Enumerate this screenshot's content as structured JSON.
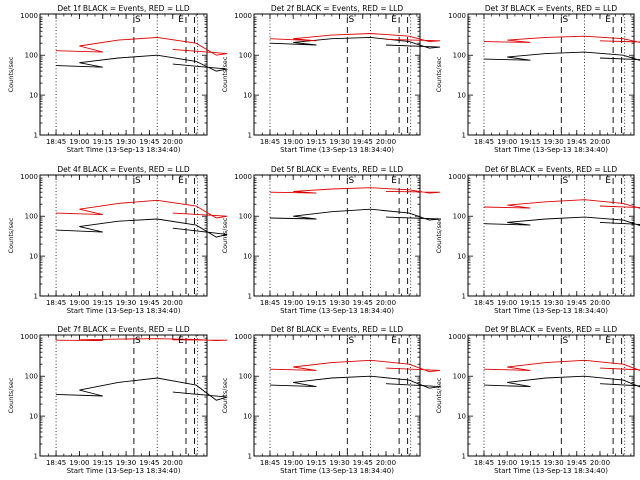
{
  "chart_data": [
    {
      "type": "line",
      "title": "Det 1f BLACK = Events, RED = LLD",
      "xlabel": "Start Time (13-Sep-13 18:34:40)",
      "ylabel": "Counts/sec",
      "x_ticks": [
        "18:45",
        "19:00",
        "19:15",
        "19:30",
        "19:45",
        "20:00"
      ],
      "y_ticks": [
        "1",
        "10",
        "100",
        "1000"
      ],
      "ylim": [
        1,
        1000
      ],
      "y_scale": "log",
      "series": [
        {
          "color": "#000000",
          "x": [
            18.45,
            18.75,
            19.0,
            19.25,
            19.5,
            19.75,
            19.88,
            19.95,
            20.0
          ],
          "values": [
            55,
            50,
            65,
            85,
            100,
            70,
            40,
            45,
            60
          ]
        },
        {
          "color": "#dd0000",
          "x": [
            18.45,
            18.75,
            19.0,
            19.25,
            19.5,
            19.75,
            19.88,
            19.95,
            20.0
          ],
          "values": [
            130,
            120,
            170,
            240,
            280,
            200,
            100,
            110,
            140
          ]
        }
      ],
      "markers": [
        "S",
        "E"
      ]
    },
    {
      "type": "line",
      "title": "Det 2f BLACK = Events, RED = LLD",
      "xlabel": "Start Time (13-Sep-13 18:34:40)",
      "ylabel": "Counts/sec",
      "x_ticks": [
        "18:45",
        "19:00",
        "19:15",
        "19:30",
        "19:45",
        "20:00"
      ],
      "y_ticks": [
        "1",
        "10",
        "100",
        "1000"
      ],
      "ylim": [
        1,
        1000
      ],
      "y_scale": "log",
      "series": [
        {
          "color": "#000000",
          "x": [
            18.45,
            18.75,
            19.0,
            19.25,
            19.5,
            19.75,
            19.88,
            19.95,
            20.0
          ],
          "values": [
            200,
            180,
            210,
            260,
            280,
            220,
            150,
            160,
            180
          ]
        },
        {
          "color": "#dd0000",
          "x": [
            18.45,
            18.75,
            19.0,
            19.25,
            19.5,
            19.75,
            19.88,
            19.95,
            20.0
          ],
          "values": [
            260,
            230,
            260,
            320,
            350,
            300,
            220,
            230,
            250
          ]
        }
      ],
      "markers": [
        "S",
        "E"
      ]
    },
    {
      "type": "line",
      "title": "Det 3f BLACK = Events, RED = LLD",
      "xlabel": "Start Time (13-Sep-13 18:34:40)",
      "ylabel": "Counts/sec",
      "x_ticks": [
        "18:45",
        "19:00",
        "19:15",
        "19:30",
        "19:45",
        "20:00"
      ],
      "y_ticks": [
        "1",
        "10",
        "100",
        "1000"
      ],
      "ylim": [
        1,
        1000
      ],
      "y_scale": "log",
      "series": [
        {
          "color": "#000000",
          "x": [
            18.45,
            18.75,
            19.0,
            19.25,
            19.5,
            19.75,
            19.88,
            19.95,
            20.0
          ],
          "values": [
            80,
            75,
            90,
            110,
            120,
            100,
            70,
            75,
            85
          ]
        },
        {
          "color": "#dd0000",
          "x": [
            18.45,
            18.75,
            19.0,
            19.25,
            19.5,
            19.75,
            19.88,
            19.95,
            20.0
          ],
          "values": [
            220,
            210,
            240,
            280,
            300,
            260,
            200,
            210,
            230
          ]
        }
      ],
      "markers": [
        "S",
        "E"
      ]
    },
    {
      "type": "line",
      "title": "Det 4f BLACK = Events, RED = LLD",
      "xlabel": "Start Time (13-Sep-13 18:34:40)",
      "ylabel": "Counts/sec",
      "x_ticks": [
        "18:45",
        "19:00",
        "19:15",
        "19:30",
        "19:45",
        "20:00"
      ],
      "y_ticks": [
        "1",
        "10",
        "100",
        "1000"
      ],
      "ylim": [
        1,
        1000
      ],
      "y_scale": "log",
      "series": [
        {
          "color": "#000000",
          "x": [
            18.45,
            18.75,
            19.0,
            19.25,
            19.5,
            19.75,
            19.88,
            19.95,
            20.0
          ],
          "values": [
            45,
            40,
            55,
            75,
            85,
            60,
            30,
            35,
            50
          ]
        },
        {
          "color": "#dd0000",
          "x": [
            18.45,
            18.75,
            19.0,
            19.25,
            19.5,
            19.75,
            19.88,
            19.95,
            20.0
          ],
          "values": [
            120,
            110,
            150,
            210,
            250,
            180,
            90,
            100,
            120
          ]
        }
      ],
      "markers": [
        "S",
        "E"
      ]
    },
    {
      "type": "line",
      "title": "Det 5f BLACK = Events, RED = LLD",
      "xlabel": "Start Time (13-Sep-13 18:34:40)",
      "ylabel": "Counts/sec",
      "x_ticks": [
        "18:45",
        "19:00",
        "19:15",
        "19:30",
        "19:45",
        "20:00"
      ],
      "y_ticks": [
        "1",
        "10",
        "100",
        "1000"
      ],
      "ylim": [
        1,
        1000
      ],
      "y_scale": "log",
      "series": [
        {
          "color": "#000000",
          "x": [
            18.45,
            18.75,
            19.0,
            19.25,
            19.5,
            19.75,
            19.88,
            19.95,
            20.0
          ],
          "values": [
            90,
            85,
            100,
            130,
            150,
            120,
            80,
            85,
            95
          ]
        },
        {
          "color": "#dd0000",
          "x": [
            18.45,
            18.75,
            19.0,
            19.25,
            19.5,
            19.75,
            19.88,
            19.95,
            20.0
          ],
          "values": [
            400,
            380,
            420,
            480,
            520,
            460,
            380,
            400,
            420
          ]
        }
      ],
      "markers": [
        "S",
        "E"
      ]
    },
    {
      "type": "line",
      "title": "Det 6f BLACK = Events, RED = LLD",
      "xlabel": "Start Time (13-Sep-13 18:34:40)",
      "ylabel": "Counts/sec",
      "x_ticks": [
        "18:45",
        "19:00",
        "19:15",
        "19:30",
        "19:45",
        "20:00"
      ],
      "y_ticks": [
        "1",
        "10",
        "100",
        "1000"
      ],
      "ylim": [
        1,
        1000
      ],
      "y_scale": "log",
      "series": [
        {
          "color": "#000000",
          "x": [
            18.45,
            18.75,
            19.0,
            19.25,
            19.5,
            19.75,
            19.88,
            19.95,
            20.0
          ],
          "values": [
            65,
            60,
            70,
            85,
            95,
            80,
            55,
            60,
            70
          ]
        },
        {
          "color": "#dd0000",
          "x": [
            18.45,
            18.75,
            19.0,
            19.25,
            19.5,
            19.75,
            19.88,
            19.95,
            20.0
          ],
          "values": [
            170,
            160,
            190,
            230,
            260,
            210,
            150,
            160,
            180
          ]
        }
      ],
      "markers": [
        "S",
        "E"
      ]
    },
    {
      "type": "line",
      "title": "Det 7f BLACK = Events, RED = LLD",
      "xlabel": "Start Time (13-Sep-13 18:34:40)",
      "ylabel": "Counts/sec",
      "x_ticks": [
        "18:45",
        "19:00",
        "19:15",
        "19:30",
        "19:45",
        "20:00"
      ],
      "y_ticks": [
        "1",
        "10",
        "100",
        "1000"
      ],
      "ylim": [
        1,
        1000
      ],
      "y_scale": "log",
      "series": [
        {
          "color": "#000000",
          "x": [
            18.45,
            18.75,
            19.0,
            19.25,
            19.5,
            19.75,
            19.88,
            19.95,
            20.0
          ],
          "values": [
            35,
            32,
            45,
            70,
            90,
            60,
            25,
            30,
            40
          ]
        },
        {
          "color": "#dd0000",
          "x": [
            18.45,
            18.75,
            19.0,
            19.25,
            19.5,
            19.75,
            19.88,
            19.95,
            20.0
          ],
          "values": [
            800,
            780,
            820,
            850,
            870,
            840,
            780,
            800,
            820
          ]
        }
      ],
      "markers": [
        "S",
        "E"
      ]
    },
    {
      "type": "line",
      "title": "Det 8f BLACK = Events, RED = LLD",
      "xlabel": "Start Time (13-Sep-13 18:34:40)",
      "ylabel": "Counts/sec",
      "x_ticks": [
        "18:45",
        "19:00",
        "19:15",
        "19:30",
        "19:45",
        "20:00"
      ],
      "y_ticks": [
        "1",
        "10",
        "100",
        "1000"
      ],
      "ylim": [
        1,
        1000
      ],
      "y_scale": "log",
      "series": [
        {
          "color": "#000000",
          "x": [
            18.45,
            18.75,
            19.0,
            19.25,
            19.5,
            19.75,
            19.88,
            19.95,
            20.0
          ],
          "values": [
            60,
            55,
            70,
            90,
            100,
            80,
            50,
            55,
            65
          ]
        },
        {
          "color": "#dd0000",
          "x": [
            18.45,
            18.75,
            19.0,
            19.25,
            19.5,
            19.75,
            19.88,
            19.95,
            20.0
          ],
          "values": [
            150,
            140,
            170,
            220,
            250,
            200,
            130,
            140,
            160
          ]
        }
      ],
      "markers": [
        "S",
        "E"
      ]
    },
    {
      "type": "line",
      "title": "Det 9f BLACK = Events, RED = LLD",
      "xlabel": "Start Time (13-Sep-13 18:34:40)",
      "ylabel": "Counts/sec",
      "x_ticks": [
        "18:45",
        "19:00",
        "19:15",
        "19:30",
        "19:45",
        "20:00"
      ],
      "y_ticks": [
        "1",
        "10",
        "100",
        "1000"
      ],
      "ylim": [
        1,
        1000
      ],
      "y_scale": "log",
      "series": [
        {
          "color": "#000000",
          "x": [
            18.45,
            18.75,
            19.0,
            19.25,
            19.5,
            19.75,
            19.88,
            19.95,
            20.0
          ],
          "values": [
            60,
            55,
            70,
            90,
            100,
            80,
            50,
            55,
            65
          ]
        },
        {
          "color": "#dd0000",
          "x": [
            18.45,
            18.75,
            19.0,
            19.25,
            19.5,
            19.75,
            19.88,
            19.95,
            20.0
          ],
          "values": [
            150,
            140,
            170,
            220,
            250,
            200,
            130,
            140,
            160
          ]
        }
      ],
      "markers": [
        "S",
        "E"
      ]
    }
  ]
}
